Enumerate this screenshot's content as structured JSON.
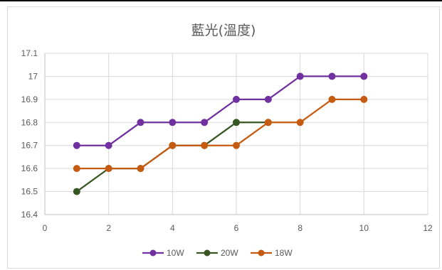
{
  "chart_data": {
    "type": "line",
    "title": "藍光(溫度)",
    "xlabel": "",
    "ylabel": "",
    "xlim": [
      0,
      12
    ],
    "ylim": [
      16.4,
      17.1
    ],
    "x_ticks": [
      0,
      2,
      4,
      6,
      8,
      10,
      12
    ],
    "y_ticks": [
      16.4,
      16.5,
      16.6,
      16.7,
      16.8,
      16.9,
      17,
      17.1
    ],
    "x_tick_labels": [
      "0",
      "2",
      "4",
      "6",
      "8",
      "10",
      "12"
    ],
    "y_tick_labels": [
      "16.4",
      "16.5",
      "16.6",
      "16.7",
      "16.8",
      "16.9",
      "17",
      "17.1"
    ],
    "grid": true,
    "legend_position": "bottom",
    "series": [
      {
        "name": "10W",
        "color": "#7030a0",
        "x": [
          1,
          2,
          3,
          4,
          5,
          6,
          7,
          8,
          9,
          10
        ],
        "y": [
          16.7,
          16.7,
          16.8,
          16.8,
          16.8,
          16.9,
          16.9,
          17.0,
          17.0,
          17.0
        ]
      },
      {
        "name": "20W",
        "color": "#375623",
        "x": [
          1,
          2,
          3,
          4,
          5,
          6,
          7
        ],
        "y": [
          16.5,
          16.6,
          16.6,
          16.7,
          16.7,
          16.8,
          16.8
        ]
      },
      {
        "name": "18W",
        "color": "#c55a11",
        "x": [
          1,
          2,
          3,
          4,
          5,
          6,
          7,
          8,
          9,
          10
        ],
        "y": [
          16.6,
          16.6,
          16.6,
          16.7,
          16.7,
          16.7,
          16.8,
          16.8,
          16.9,
          16.9
        ]
      }
    ]
  }
}
